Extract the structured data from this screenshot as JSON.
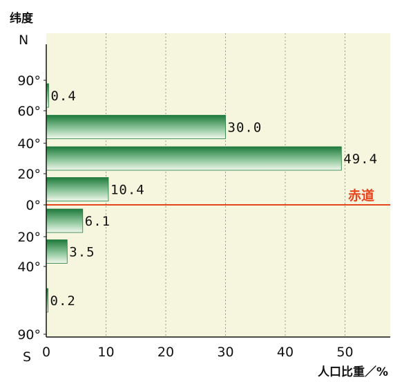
{
  "chart_data": {
    "type": "bar",
    "orientation": "horizontal",
    "ylabel": "纬度",
    "xlabel": "人口比重／%",
    "north_label": "N",
    "south_label": "S",
    "x_ticks": [
      "0",
      "10",
      "20",
      "30",
      "40",
      "50"
    ],
    "xlim": [
      0,
      58
    ],
    "grid": "vertical dashed",
    "latitude_labels": [
      {
        "text": "90°",
        "lat": 90
      },
      {
        "text": "60°",
        "lat": 60
      },
      {
        "text": "40°",
        "lat": 40
      },
      {
        "text": "20°",
        "lat": 20
      },
      {
        "text": "0°",
        "lat": 0,
        "highlight": true
      },
      {
        "text": "20°",
        "lat": -20
      },
      {
        "text": "40°",
        "lat": -40
      },
      {
        "text": "90°",
        "lat": -90
      }
    ],
    "bands": [
      {
        "from": 90,
        "to": 60,
        "value": 0.4,
        "label": "0.4"
      },
      {
        "from": 60,
        "to": 40,
        "value": 30.0,
        "label": "30.0"
      },
      {
        "from": 40,
        "to": 20,
        "value": 49.4,
        "label": "49.4"
      },
      {
        "from": 20,
        "to": 0,
        "value": 10.4,
        "label": "10.4"
      },
      {
        "from": 0,
        "to": -20,
        "value": 6.1,
        "label": "6.1"
      },
      {
        "from": -20,
        "to": -40,
        "value": 3.5,
        "label": "3.5"
      },
      {
        "from": -40,
        "to": -90,
        "value": 0.2,
        "label": "0.2"
      }
    ],
    "equator": {
      "label": "赤道",
      "color": "#e8441c"
    }
  },
  "colors": {
    "plot_bg": "#f6f6df",
    "bar_dark": "#1f7a3c",
    "bar_light": "#f2f8ec",
    "grid": "#9a9a8a",
    "equator": "#e8441c"
  }
}
